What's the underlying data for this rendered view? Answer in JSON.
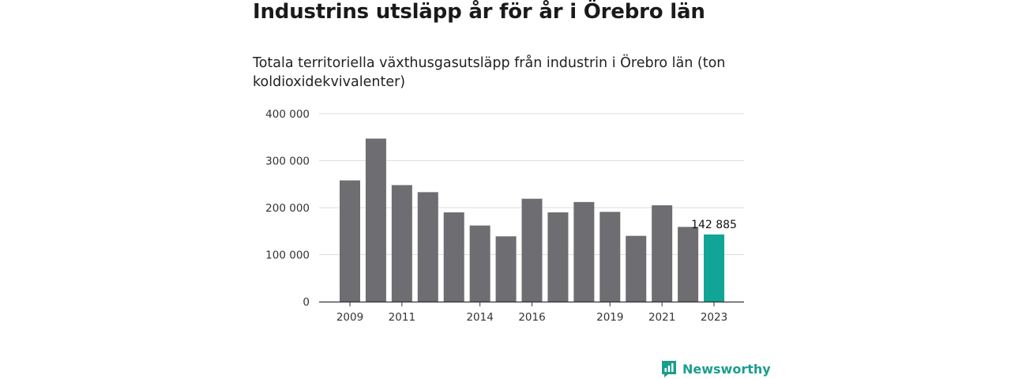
{
  "title": "Industrins utsläpp år för år i Örebro län",
  "subtitle": "Totala territoriella växthusgasutsläpp från industrin i Örebro län (ton koldioxidekvivalenter)",
  "brand": {
    "name": "Newsworthy",
    "icon": "bar-chart-icon",
    "color": "#1b9e8e"
  },
  "chart_data": {
    "type": "bar",
    "categories": [
      "2009",
      "2010",
      "2011",
      "2012",
      "2013",
      "2014",
      "2015",
      "2016",
      "2017",
      "2018",
      "2019",
      "2020",
      "2021",
      "2022",
      "2023"
    ],
    "values": [
      258000,
      347000,
      248000,
      233000,
      190000,
      162000,
      139000,
      219000,
      190000,
      212000,
      191000,
      140000,
      205000,
      159000,
      142885
    ],
    "x_tick_labels": [
      "2009",
      "2011",
      "2014",
      "2016",
      "2019",
      "2021",
      "2023"
    ],
    "y_ticks": [
      0,
      100000,
      200000,
      300000,
      400000
    ],
    "y_tick_labels": [
      "0",
      "100 000",
      "200 000",
      "300 000",
      "400 000"
    ],
    "ylim": [
      0,
      400000
    ],
    "grid": true,
    "bar_color": "#6d6d72",
    "highlight_color": "#10a596",
    "highlight_index": 14,
    "data_label": "142 885",
    "xlabel": "",
    "ylabel": ""
  }
}
